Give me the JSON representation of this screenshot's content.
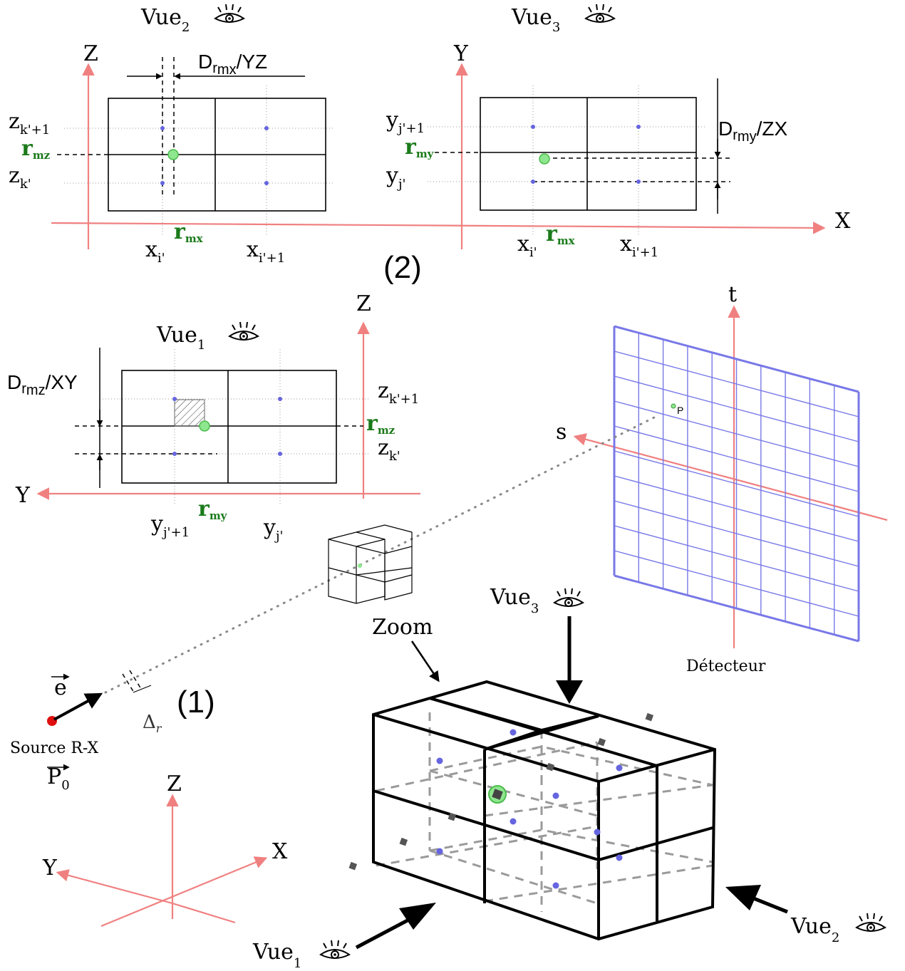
{
  "view_labels": {
    "vue1": {
      "base": "Vue",
      "sub": "1"
    },
    "vue2": {
      "base": "Vue",
      "sub": "2"
    },
    "vue3": {
      "base": "Vue",
      "sub": "3"
    }
  },
  "top_panel": {
    "axes": {
      "z": "Z",
      "y": "Y",
      "x": "X"
    },
    "zk1": {
      "base": "z",
      "sub": "k'+1"
    },
    "zk": {
      "base": "z",
      "sub": "k'"
    },
    "rmz": {
      "base": "r",
      "sub": "mz"
    },
    "xi": {
      "base": "x",
      "sub": "i'"
    },
    "xi1": {
      "base": "x",
      "sub": "i'+1"
    },
    "rmx": {
      "base": "r",
      "sub": "mx"
    },
    "yj1": {
      "base": "y",
      "sub": "j'+1"
    },
    "yj": {
      "base": "y",
      "sub": "j'"
    },
    "rmy": {
      "base": "r",
      "sub": "my"
    },
    "d_yz": {
      "base": "D",
      "sub": "r",
      "subsub": "mx",
      "suffix": "/YZ"
    },
    "d_zx": {
      "base": "D",
      "sub": "r",
      "subsub": "my",
      "suffix": "/ZX"
    },
    "step_label": "(2)"
  },
  "mid_panel": {
    "axes": {
      "z": "Z",
      "y": "Y"
    },
    "d_xy": {
      "base": "D",
      "sub": "r",
      "subsub": "mz",
      "suffix": "/XY"
    },
    "zk1": {
      "base": "z",
      "sub": "k'+1"
    },
    "zk": {
      "base": "z",
      "sub": "k'"
    },
    "rmz": {
      "base": "r",
      "sub": "mz"
    },
    "yj1": {
      "base": "y",
      "sub": "j'+1"
    },
    "yj": {
      "base": "y",
      "sub": "j'"
    },
    "rmy": {
      "base": "r",
      "sub": "my"
    }
  },
  "detector": {
    "t_label": "t",
    "s_label": "s",
    "p_label": "P",
    "caption": "Détecteur",
    "colors": {
      "grid": "#7878e8",
      "axis": "#f08080"
    }
  },
  "source": {
    "e_label": "e",
    "caption": "Source R-X",
    "p0": {
      "base": "P",
      "sub": "0"
    },
    "delta": {
      "base": "Δ",
      "sub": "r"
    },
    "step_label": "(1)",
    "colors": {
      "source_dot": "#e01010"
    }
  },
  "global_axes": {
    "z": "Z",
    "y": "Y",
    "x": "X"
  },
  "zoom_label": "Zoom",
  "icons": [
    "eye-icon"
  ],
  "colors": {
    "axis": "#f08080",
    "point": "#6565e0",
    "highlight": "#8ee68e",
    "label_green": "#1a7a1a"
  }
}
